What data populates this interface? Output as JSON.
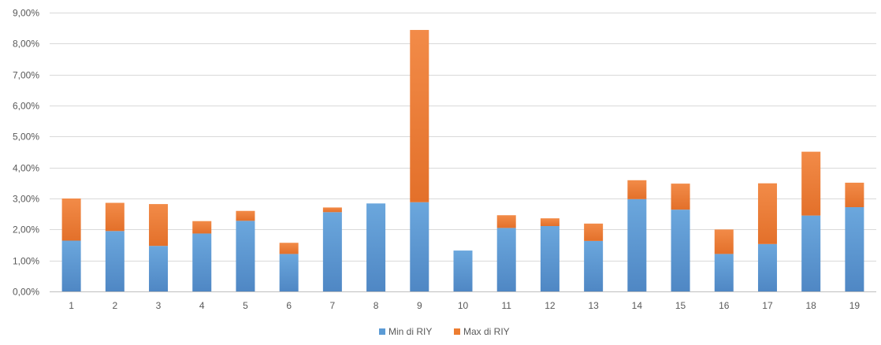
{
  "chart_data": {
    "type": "bar",
    "stacked": true,
    "categories": [
      "1",
      "2",
      "3",
      "4",
      "5",
      "6",
      "7",
      "8",
      "9",
      "10",
      "11",
      "12",
      "13",
      "14",
      "15",
      "16",
      "17",
      "18",
      "19"
    ],
    "series": [
      {
        "name": "Min di RIY",
        "color": "#5B9BD5",
        "values": [
          1.64,
          1.95,
          1.47,
          1.87,
          2.28,
          1.21,
          2.56,
          2.84,
          2.88,
          1.32,
          2.05,
          2.11,
          1.63,
          2.98,
          2.64,
          1.21,
          1.53,
          2.45,
          2.72
        ]
      },
      {
        "name": "Max di RIY",
        "color": "#ED7D31",
        "values": [
          1.36,
          0.91,
          1.35,
          0.4,
          0.32,
          0.36,
          0.15,
          0.0,
          5.56,
          0.0,
          0.41,
          0.25,
          0.56,
          0.61,
          0.84,
          0.79,
          1.96,
          2.06,
          0.79
        ]
      }
    ],
    "ylim": [
      0,
      9
    ],
    "yticks": [
      "0,00%",
      "1,00%",
      "2,00%",
      "3,00%",
      "4,00%",
      "5,00%",
      "6,00%",
      "7,00%",
      "8,00%",
      "9,00%"
    ],
    "grid": true,
    "legend": "bottom-center"
  }
}
